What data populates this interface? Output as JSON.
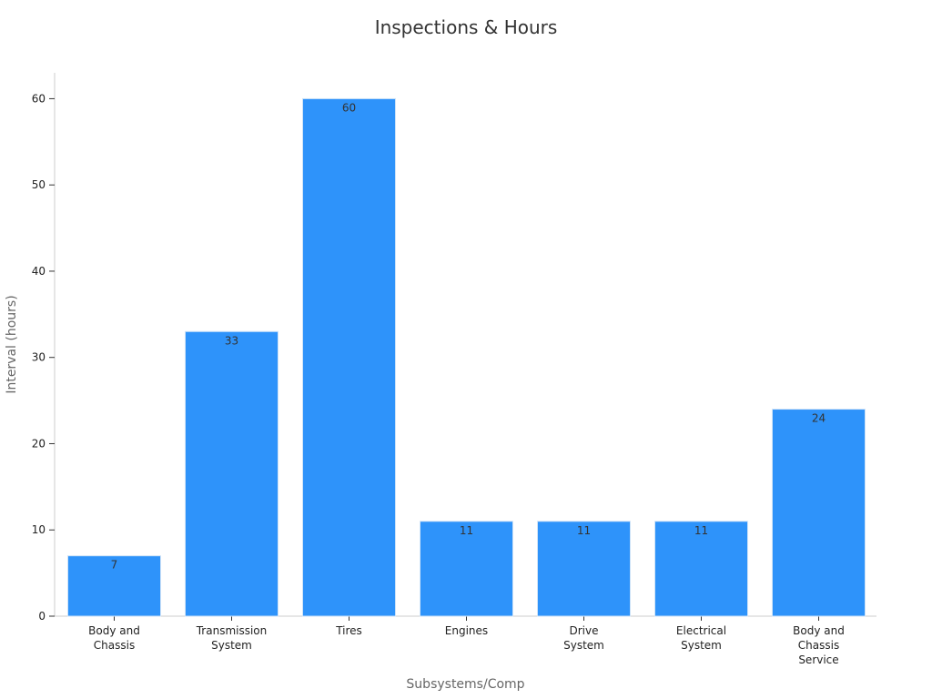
{
  "chart_data": {
    "type": "bar",
    "title": "Inspections & Hours",
    "xlabel": "Subsystems/Comp",
    "ylabel": "Interval (hours)",
    "categories": [
      [
        "Body and",
        "Chassis"
      ],
      [
        "Transmission",
        "System"
      ],
      [
        "Tires"
      ],
      [
        "Engines"
      ],
      [
        "Drive",
        "System"
      ],
      [
        "Electrical",
        "System"
      ],
      [
        "Body and",
        "Chassis",
        "Service"
      ]
    ],
    "values": [
      7,
      33,
      60,
      11,
      11,
      11,
      24
    ],
    "ylim": [
      0,
      63
    ],
    "yticks": [
      0,
      10,
      20,
      30,
      40,
      50,
      60
    ],
    "bar_color": "#2E93FA",
    "bar_edge_color": "#cfe3f7",
    "grid": false,
    "legend": "none",
    "data_labels": true
  }
}
